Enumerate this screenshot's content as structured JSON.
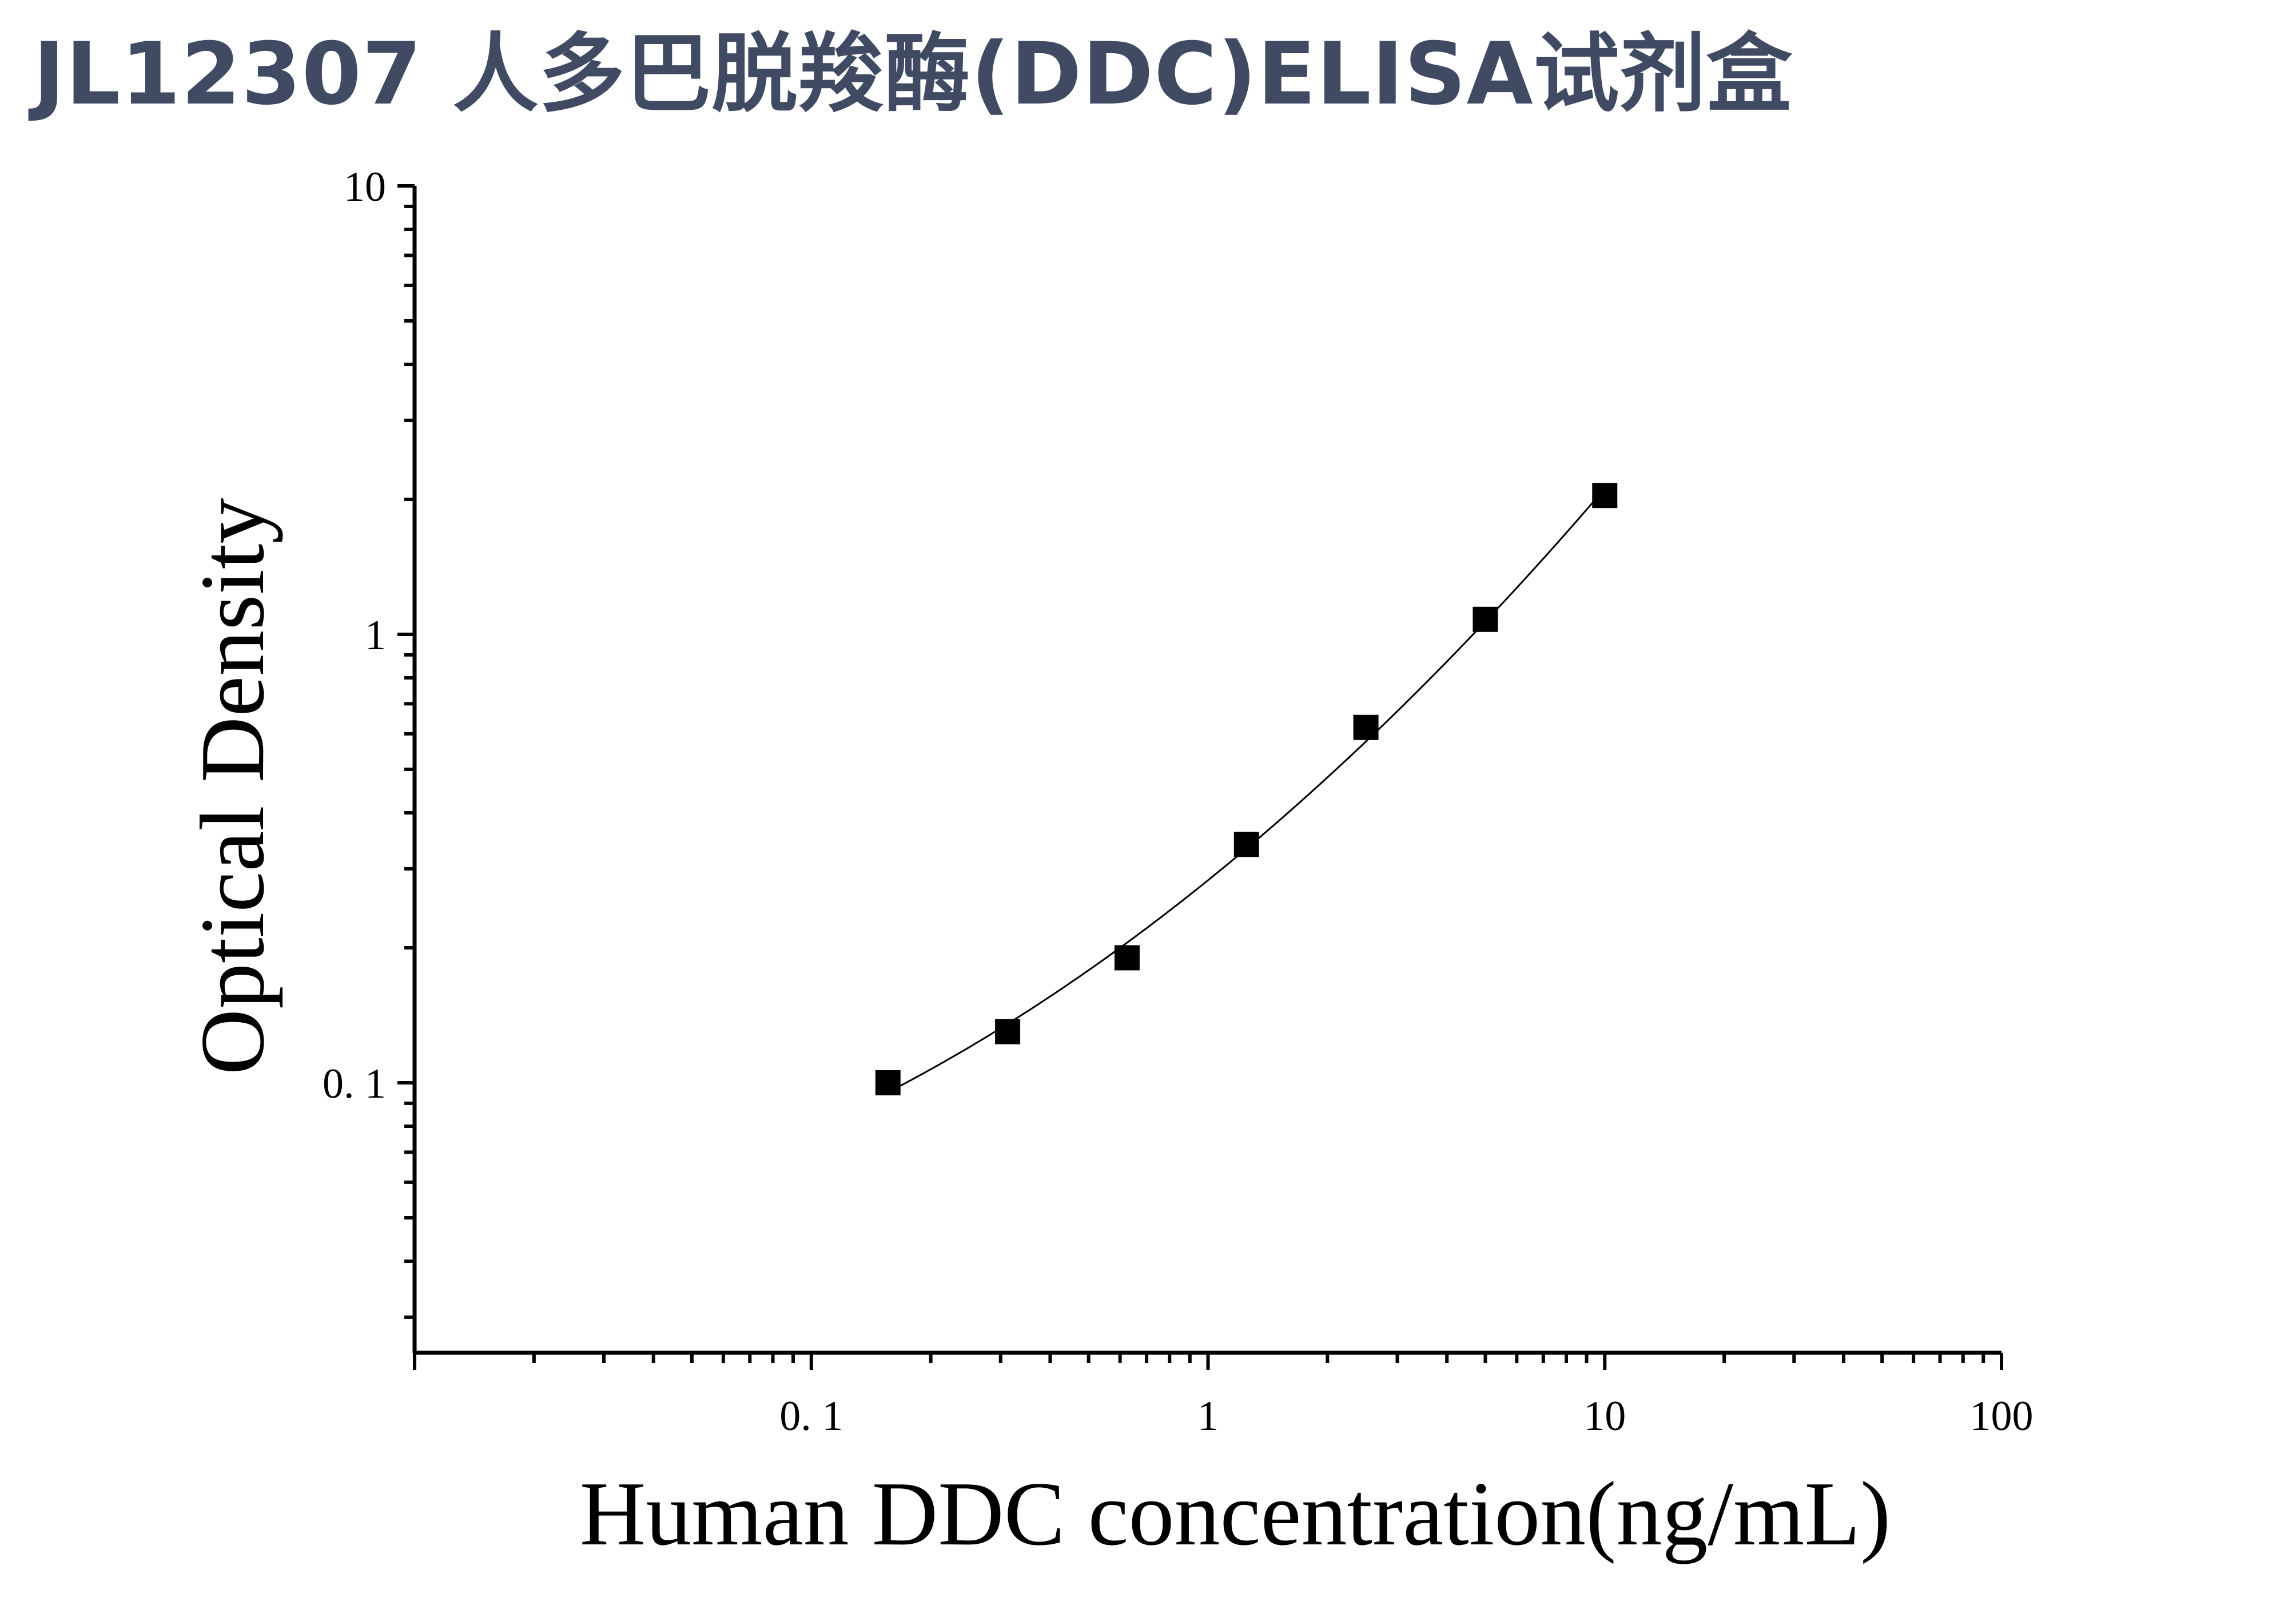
{
  "title": "JL12307 人多巴脱羧酶(DDC)ELISA试剂盒",
  "chart_data": {
    "type": "scatter",
    "xlabel": "Human DDC concentration(ng/mL)",
    "ylabel": "Optical Density",
    "x_scale": "log",
    "y_scale": "log",
    "xlim": [
      0.01,
      100
    ],
    "ylim": [
      0.025,
      10
    ],
    "x_ticks": [
      {
        "value": 0.1,
        "label": "0. 1"
      },
      {
        "value": 1,
        "label": "1"
      },
      {
        "value": 10,
        "label": "10"
      },
      {
        "value": 100,
        "label": "100"
      }
    ],
    "y_ticks": [
      {
        "value": 0.1,
        "label": "0. 1"
      },
      {
        "value": 1,
        "label": "1"
      },
      {
        "value": 10,
        "label": "10"
      }
    ],
    "grid": false,
    "marker_color": "#000000",
    "series": [
      {
        "x": [
          0.156,
          0.3125,
          0.625,
          1.25,
          2.5,
          5,
          10
        ],
        "y": [
          0.1,
          0.13,
          0.19,
          0.34,
          0.62,
          1.08,
          2.04
        ],
        "fit_curve": true
      }
    ]
  }
}
